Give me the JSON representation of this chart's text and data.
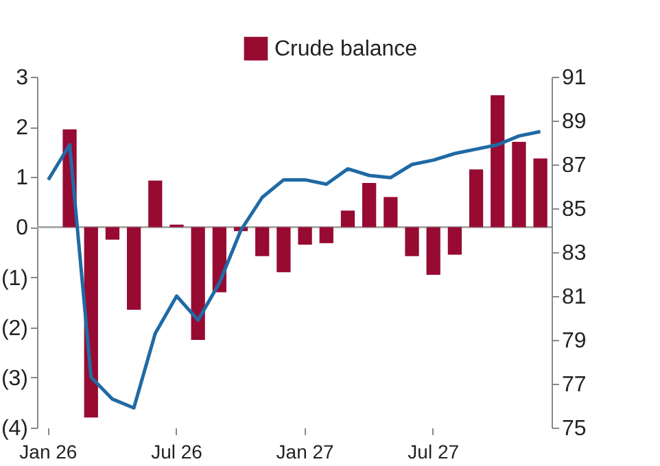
{
  "chart_data": {
    "type": "bar",
    "categories": [
      "Jan 26",
      null,
      null,
      null,
      null,
      null,
      "Jul 26",
      null,
      null,
      null,
      null,
      null,
      "Jan 27",
      null,
      null,
      null,
      null,
      null,
      "Jul 27",
      null,
      null,
      null,
      null,
      null
    ],
    "series": [
      {
        "name": "Crude balance",
        "color": "#970a31",
        "values": [
          null,
          1.95,
          -3.8,
          -0.25,
          -1.65,
          0.93,
          0.05,
          -2.25,
          -1.3,
          -0.08,
          -0.58,
          -0.9,
          -0.35,
          -0.32,
          0.33,
          0.88,
          0.6,
          -0.58,
          -0.95,
          -0.55,
          1.15,
          2.63,
          1.7,
          1.37
        ]
      },
      {
        "type": "line",
        "axis": "y2",
        "color": "#1f6aa5",
        "values": [
          86.3,
          87.9,
          77.3,
          76.3,
          75.9,
          79.3,
          81,
          79.9,
          81.6,
          84,
          85.5,
          86.3,
          86.3,
          86.1,
          86.8,
          86.5,
          86.4,
          87,
          87.2,
          87.5,
          87.7,
          87.9,
          88.3,
          88.5
        ]
      }
    ],
    "ylim": [
      -4,
      3
    ],
    "yticks": [
      {
        "value": -4,
        "label": "(4)"
      },
      {
        "value": -3,
        "label": "(3)"
      },
      {
        "value": -2,
        "label": "(2)"
      },
      {
        "value": -1,
        "label": "(1)"
      },
      0,
      1,
      2,
      3
    ],
    "y2lim": [
      75,
      91
    ],
    "y2ticks": [
      75,
      77,
      79,
      81,
      83,
      85,
      87,
      89,
      91
    ],
    "ref_lines": [
      {
        "axis": "y",
        "value": 0,
        "color": "#aaaaaa"
      }
    ],
    "legend": "top"
  }
}
